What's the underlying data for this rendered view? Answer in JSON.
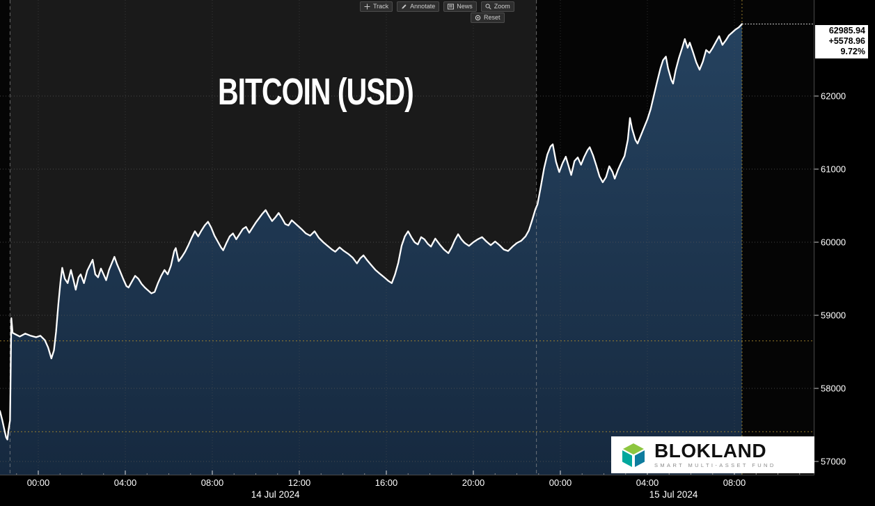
{
  "toolbar": {
    "buttons": [
      {
        "label": "Track"
      },
      {
        "label": "Annotate"
      },
      {
        "label": "News"
      },
      {
        "label": "Zoom"
      }
    ],
    "reset_label": "Reset"
  },
  "price_box": {
    "last": "62985.94",
    "change": "+5578.96",
    "percent": "9.72%"
  },
  "logo": {
    "name": "BLOKLAND",
    "subtitle": "SMART MULTI-ASSET FUND"
  },
  "chart_data": {
    "type": "area",
    "title": "BITCOIN (USD)",
    "x_unit": "hours from 00:00 14 Jul 2024",
    "xlim_hours": [
      -1.76,
      35.68
    ],
    "ylim": [
      56810,
      63314
    ],
    "y_ticks": [
      57000,
      58000,
      59000,
      60000,
      61000,
      62000
    ],
    "x_ticks": [
      {
        "t": 0,
        "label": "00:00"
      },
      {
        "t": 4,
        "label": "04:00"
      },
      {
        "t": 8,
        "label": "08:00"
      },
      {
        "t": 12,
        "label": "12:00"
      },
      {
        "t": 16,
        "label": "16:00"
      },
      {
        "t": 20,
        "label": "20:00"
      },
      {
        "t": 24,
        "label": "00:00"
      },
      {
        "t": 28,
        "label": "04:00"
      },
      {
        "t": 32,
        "label": "08:00"
      }
    ],
    "date_labels": [
      {
        "t": 10.9,
        "label": "14 Jul 2024"
      },
      {
        "t": 29.2,
        "label": "15 Jul 2024"
      }
    ],
    "sessions": [
      {
        "from": -1.3,
        "to": 22.9,
        "bg": "#1a1a1a"
      }
    ],
    "boundary_lines": [
      -1.3,
      22.9
    ],
    "reference_lines": [
      {
        "name": "session-reference-line",
        "price": 58650
      },
      {
        "name": "previous-close-line",
        "price": 57406.98
      }
    ],
    "last_point_vline_t": 32.35,
    "last_price": 62985.94,
    "colors": {
      "line": "#ffffff",
      "fill_top": "#25425f",
      "fill_bottom": "#16293f",
      "grid": "#555555",
      "amber": "#a8892e",
      "boundary": "#999999",
      "bg_right": "#050505",
      "last_price_line": "#cccccc"
    },
    "points": [
      [
        -1.76,
        57690
      ],
      [
        -1.65,
        57560
      ],
      [
        -1.55,
        57420
      ],
      [
        -1.48,
        57330
      ],
      [
        -1.42,
        57300
      ],
      [
        -1.36,
        57450
      ],
      [
        -1.3,
        57560
      ],
      [
        -1.27,
        58200
      ],
      [
        -1.24,
        58960
      ],
      [
        -1.18,
        58760
      ],
      [
        -1.05,
        58740
      ],
      [
        -0.85,
        58710
      ],
      [
        -0.6,
        58750
      ],
      [
        -0.35,
        58720
      ],
      [
        -0.1,
        58700
      ],
      [
        0.1,
        58720
      ],
      [
        0.3,
        58660
      ],
      [
        0.45,
        58560
      ],
      [
        0.6,
        58410
      ],
      [
        0.72,
        58520
      ],
      [
        0.82,
        58780
      ],
      [
        0.92,
        59150
      ],
      [
        1.02,
        59460
      ],
      [
        1.1,
        59650
      ],
      [
        1.22,
        59500
      ],
      [
        1.35,
        59440
      ],
      [
        1.5,
        59620
      ],
      [
        1.62,
        59480
      ],
      [
        1.72,
        59350
      ],
      [
        1.85,
        59520
      ],
      [
        1.95,
        59560
      ],
      [
        2.1,
        59440
      ],
      [
        2.25,
        59610
      ],
      [
        2.4,
        59700
      ],
      [
        2.5,
        59760
      ],
      [
        2.62,
        59560
      ],
      [
        2.75,
        59520
      ],
      [
        2.88,
        59640
      ],
      [
        3.0,
        59560
      ],
      [
        3.12,
        59480
      ],
      [
        3.25,
        59620
      ],
      [
        3.4,
        59730
      ],
      [
        3.5,
        59800
      ],
      [
        3.62,
        59700
      ],
      [
        3.75,
        59610
      ],
      [
        3.9,
        59500
      ],
      [
        4.05,
        59400
      ],
      [
        4.15,
        59380
      ],
      [
        4.3,
        59460
      ],
      [
        4.45,
        59540
      ],
      [
        4.6,
        59500
      ],
      [
        4.75,
        59430
      ],
      [
        4.9,
        59380
      ],
      [
        5.05,
        59340
      ],
      [
        5.2,
        59300
      ],
      [
        5.35,
        59320
      ],
      [
        5.5,
        59440
      ],
      [
        5.65,
        59540
      ],
      [
        5.8,
        59620
      ],
      [
        5.95,
        59560
      ],
      [
        6.1,
        59680
      ],
      [
        6.25,
        59880
      ],
      [
        6.32,
        59920
      ],
      [
        6.45,
        59740
      ],
      [
        6.6,
        59800
      ],
      [
        6.75,
        59870
      ],
      [
        6.9,
        59960
      ],
      [
        7.05,
        60060
      ],
      [
        7.2,
        60150
      ],
      [
        7.35,
        60080
      ],
      [
        7.5,
        60160
      ],
      [
        7.65,
        60230
      ],
      [
        7.8,
        60280
      ],
      [
        7.95,
        60200
      ],
      [
        8.1,
        60090
      ],
      [
        8.25,
        60010
      ],
      [
        8.4,
        59930
      ],
      [
        8.5,
        59890
      ],
      [
        8.65,
        59990
      ],
      [
        8.8,
        60080
      ],
      [
        8.95,
        60120
      ],
      [
        9.1,
        60040
      ],
      [
        9.25,
        60110
      ],
      [
        9.4,
        60180
      ],
      [
        9.55,
        60210
      ],
      [
        9.7,
        60130
      ],
      [
        9.85,
        60200
      ],
      [
        10.0,
        60270
      ],
      [
        10.15,
        60330
      ],
      [
        10.3,
        60390
      ],
      [
        10.45,
        60440
      ],
      [
        10.6,
        60360
      ],
      [
        10.75,
        60290
      ],
      [
        10.9,
        60340
      ],
      [
        11.05,
        60400
      ],
      [
        11.2,
        60330
      ],
      [
        11.35,
        60250
      ],
      [
        11.5,
        60230
      ],
      [
        11.65,
        60300
      ],
      [
        11.8,
        60260
      ],
      [
        11.95,
        60220
      ],
      [
        12.1,
        60180
      ],
      [
        12.3,
        60120
      ],
      [
        12.5,
        60090
      ],
      [
        12.7,
        60150
      ],
      [
        12.9,
        60060
      ],
      [
        13.1,
        60000
      ],
      [
        13.3,
        59950
      ],
      [
        13.5,
        59900
      ],
      [
        13.65,
        59870
      ],
      [
        13.85,
        59930
      ],
      [
        14.05,
        59880
      ],
      [
        14.25,
        59840
      ],
      [
        14.45,
        59790
      ],
      [
        14.65,
        59710
      ],
      [
        14.8,
        59780
      ],
      [
        14.95,
        59820
      ],
      [
        15.1,
        59760
      ],
      [
        15.3,
        59690
      ],
      [
        15.5,
        59620
      ],
      [
        15.7,
        59570
      ],
      [
        15.9,
        59520
      ],
      [
        16.1,
        59470
      ],
      [
        16.25,
        59440
      ],
      [
        16.4,
        59560
      ],
      [
        16.55,
        59720
      ],
      [
        16.7,
        59950
      ],
      [
        16.85,
        60080
      ],
      [
        17.0,
        60150
      ],
      [
        17.15,
        60070
      ],
      [
        17.3,
        60000
      ],
      [
        17.45,
        59970
      ],
      [
        17.6,
        60070
      ],
      [
        17.75,
        60040
      ],
      [
        17.9,
        59980
      ],
      [
        18.05,
        59940
      ],
      [
        18.25,
        60050
      ],
      [
        18.45,
        59970
      ],
      [
        18.65,
        59900
      ],
      [
        18.85,
        59850
      ],
      [
        19.0,
        59930
      ],
      [
        19.15,
        60030
      ],
      [
        19.3,
        60110
      ],
      [
        19.45,
        60040
      ],
      [
        19.6,
        59990
      ],
      [
        19.8,
        59950
      ],
      [
        20.0,
        60000
      ],
      [
        20.2,
        60040
      ],
      [
        20.4,
        60070
      ],
      [
        20.6,
        60010
      ],
      [
        20.8,
        59960
      ],
      [
        21.0,
        60010
      ],
      [
        21.2,
        59960
      ],
      [
        21.4,
        59900
      ],
      [
        21.6,
        59880
      ],
      [
        21.8,
        59940
      ],
      [
        22.0,
        59990
      ],
      [
        22.2,
        60020
      ],
      [
        22.4,
        60080
      ],
      [
        22.55,
        60160
      ],
      [
        22.7,
        60300
      ],
      [
        22.85,
        60450
      ],
      [
        22.95,
        60520
      ],
      [
        23.1,
        60760
      ],
      [
        23.25,
        61010
      ],
      [
        23.4,
        61200
      ],
      [
        23.55,
        61310
      ],
      [
        23.65,
        61340
      ],
      [
        23.8,
        61100
      ],
      [
        23.95,
        60960
      ],
      [
        24.1,
        61080
      ],
      [
        24.25,
        61170
      ],
      [
        24.4,
        61020
      ],
      [
        24.5,
        60920
      ],
      [
        24.65,
        61110
      ],
      [
        24.8,
        61160
      ],
      [
        24.95,
        61060
      ],
      [
        25.1,
        61170
      ],
      [
        25.25,
        61260
      ],
      [
        25.35,
        61300
      ],
      [
        25.5,
        61190
      ],
      [
        25.65,
        61050
      ],
      [
        25.8,
        60900
      ],
      [
        25.95,
        60820
      ],
      [
        26.1,
        60890
      ],
      [
        26.25,
        61040
      ],
      [
        26.4,
        60960
      ],
      [
        26.5,
        60870
      ],
      [
        26.65,
        60990
      ],
      [
        26.8,
        61090
      ],
      [
        26.95,
        61180
      ],
      [
        27.1,
        61400
      ],
      [
        27.2,
        61700
      ],
      [
        27.3,
        61550
      ],
      [
        27.45,
        61400
      ],
      [
        27.55,
        61350
      ],
      [
        27.7,
        61460
      ],
      [
        27.85,
        61570
      ],
      [
        28.0,
        61680
      ],
      [
        28.15,
        61820
      ],
      [
        28.3,
        62010
      ],
      [
        28.45,
        62200
      ],
      [
        28.6,
        62380
      ],
      [
        28.72,
        62490
      ],
      [
        28.85,
        62540
      ],
      [
        28.95,
        62380
      ],
      [
        29.1,
        62220
      ],
      [
        29.18,
        62170
      ],
      [
        29.3,
        62350
      ],
      [
        29.45,
        62520
      ],
      [
        29.6,
        62660
      ],
      [
        29.72,
        62780
      ],
      [
        29.85,
        62660
      ],
      [
        29.95,
        62730
      ],
      [
        30.1,
        62600
      ],
      [
        30.25,
        62460
      ],
      [
        30.4,
        62360
      ],
      [
        30.55,
        62470
      ],
      [
        30.7,
        62630
      ],
      [
        30.85,
        62590
      ],
      [
        31.0,
        62660
      ],
      [
        31.15,
        62740
      ],
      [
        31.3,
        62820
      ],
      [
        31.45,
        62700
      ],
      [
        31.6,
        62760
      ],
      [
        31.75,
        62830
      ],
      [
        31.9,
        62870
      ],
      [
        32.05,
        62910
      ],
      [
        32.2,
        62940
      ],
      [
        32.35,
        62985.94
      ]
    ]
  }
}
